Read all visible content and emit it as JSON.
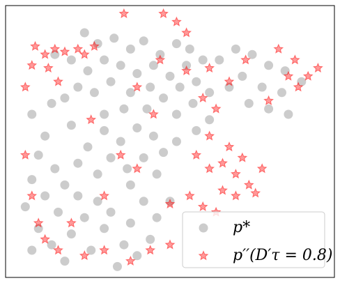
{
  "chart_data": {
    "type": "scatter",
    "xlim": [
      0,
      100
    ],
    "ylim": [
      0,
      100
    ],
    "legend": "lower right",
    "series": [
      {
        "name": "p*",
        "color": "#808080",
        "marker": "circle",
        "x": [
          24,
          28,
          33,
          38,
          42,
          47,
          52,
          56,
          45,
          40,
          35,
          30,
          25,
          20,
          15,
          50,
          55,
          60,
          44,
          38,
          32,
          27,
          22,
          18,
          48,
          53,
          58,
          43,
          36,
          30,
          52,
          57,
          62,
          65,
          70,
          75,
          80,
          85,
          72,
          78,
          84,
          90,
          74,
          80,
          86,
          68,
          62,
          58,
          40,
          45,
          35,
          30,
          48,
          42,
          37,
          32,
          25,
          52,
          46,
          38,
          28,
          22,
          10,
          15,
          8,
          18,
          12,
          22,
          28,
          6,
          16,
          24,
          32,
          10,
          20,
          30,
          38,
          14,
          26,
          36,
          44,
          8,
          18,
          40,
          34,
          46,
          50,
          42,
          12,
          20,
          8,
          14
        ],
        "values": [
          90,
          86,
          88,
          84,
          87,
          82,
          86,
          84,
          78,
          75,
          78,
          80,
          76,
          80,
          82,
          74,
          78,
          80,
          70,
          68,
          72,
          68,
          70,
          66,
          66,
          70,
          72,
          62,
          62,
          60,
          60,
          64,
          68,
          80,
          84,
          82,
          78,
          76,
          74,
          70,
          68,
          72,
          64,
          62,
          60,
          70,
          58,
          54,
          55,
          52,
          50,
          54,
          46,
          44,
          40,
          44,
          48,
          50,
          38,
          34,
          38,
          42,
          45,
          40,
          36,
          34,
          30,
          30,
          28,
          26,
          24,
          22,
          24,
          18,
          16,
          18,
          20,
          12,
          10,
          12,
          14,
          10,
          6,
          8,
          4,
          22,
          28,
          28,
          52,
          56,
          60,
          64
        ]
      },
      {
        "name": "p′′(D′τ = 0.8)",
        "color": "#ff0000",
        "marker": "star",
        "x": [
          9,
          12,
          15,
          18,
          22,
          8,
          13,
          24,
          27,
          36,
          48,
          52,
          55,
          47,
          55,
          62,
          68,
          73,
          83,
          88,
          92,
          95,
          89,
          86,
          80,
          60,
          64,
          58,
          62,
          66,
          70,
          74,
          78,
          72,
          66,
          56,
          50,
          60,
          64,
          70,
          76,
          68,
          62,
          6,
          8,
          10,
          12,
          16,
          24,
          30,
          38,
          44,
          50,
          40,
          35,
          30,
          20,
          26,
          45,
          40,
          16,
          6
        ],
        "values": [
          85,
          82,
          84,
          83,
          84,
          78,
          77,
          82,
          85,
          97,
          97,
          94,
          90,
          80,
          76,
          77,
          72,
          80,
          84,
          80,
          74,
          77,
          70,
          74,
          65,
          66,
          62,
          45,
          40,
          42,
          38,
          34,
          40,
          44,
          32,
          30,
          27,
          26,
          24,
          30,
          31,
          48,
          52,
          45,
          30,
          20,
          14,
          10,
          8,
          10,
          6,
          10,
          12,
          40,
          45,
          30,
          20,
          58,
          60,
          70,
          72,
          70
        ]
      }
    ]
  }
}
